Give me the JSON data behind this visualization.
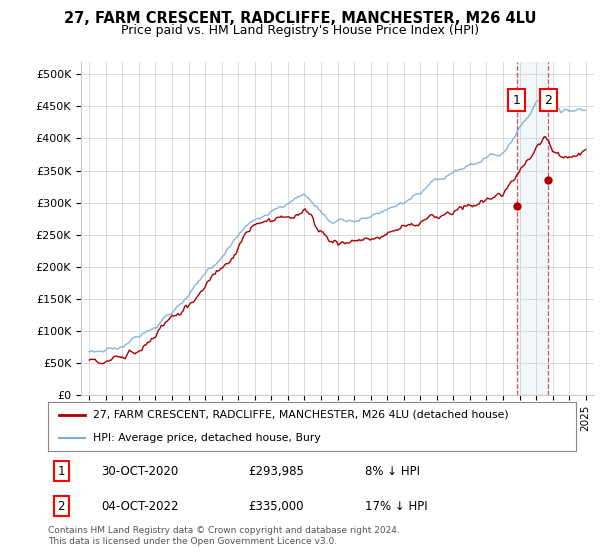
{
  "title": "27, FARM CRESCENT, RADCLIFFE, MANCHESTER, M26 4LU",
  "subtitle": "Price paid vs. HM Land Registry's House Price Index (HPI)",
  "legend_label1": "27, FARM CRESCENT, RADCLIFFE, MANCHESTER, M26 4LU (detached house)",
  "legend_label2": "HPI: Average price, detached house, Bury",
  "annotation1_label": "1",
  "annotation2_label": "2",
  "annotation1_date": "30-OCT-2020",
  "annotation1_price": "£293,985",
  "annotation1_hpi": "8% ↓ HPI",
  "annotation2_date": "04-OCT-2022",
  "annotation2_price": "£335,000",
  "annotation2_hpi": "17% ↓ HPI",
  "footer": "Contains HM Land Registry data © Crown copyright and database right 2024.\nThis data is licensed under the Open Government Licence v3.0.",
  "red_color": "#aa0000",
  "blue_color": "#7aaed6",
  "bg_color": "#ffffff",
  "grid_color": "#cccccc",
  "shade_color": "#cce0f0",
  "ylim": [
    0,
    520000
  ],
  "yticks": [
    0,
    50000,
    100000,
    150000,
    200000,
    250000,
    300000,
    350000,
    400000,
    450000,
    500000
  ],
  "ytick_labels": [
    "£0",
    "£50K",
    "£100K",
    "£150K",
    "£200K",
    "£250K",
    "£300K",
    "£350K",
    "£400K",
    "£450K",
    "£500K"
  ],
  "sale1_year": 2020.83,
  "sale1_price": 293985,
  "sale2_year": 2022.75,
  "sale2_price": 335000,
  "xmin": 1994.5,
  "xmax": 2025.5
}
